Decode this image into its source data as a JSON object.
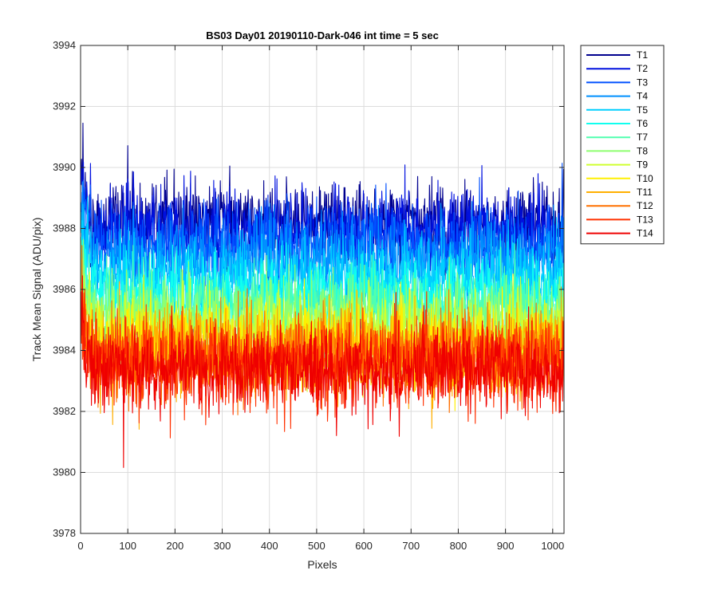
{
  "chart_data": {
    "type": "line",
    "title": "BS03 Day01 20190110-Dark-046 int time = 5 sec",
    "xlabel": "Pixels",
    "ylabel": "Track Mean Signal (ADU/pix)",
    "xlim": [
      0,
      1024
    ],
    "ylim": [
      3978,
      3994
    ],
    "xticks": [
      0,
      100,
      200,
      300,
      400,
      500,
      600,
      700,
      800,
      900,
      1000
    ],
    "yticks": [
      3978,
      3980,
      3982,
      3984,
      3986,
      3988,
      3990,
      3992,
      3994
    ],
    "grid": true,
    "legend_position": "outside-top-right",
    "series": [
      {
        "name": "T1",
        "color": "#00008F",
        "mean": 3988.2,
        "min": 3986.3,
        "max": 3992.2,
        "spread": 1.2
      },
      {
        "name": "T2",
        "color": "#0010DF",
        "mean": 3987.9,
        "min": 3985.9,
        "max": 3991.6,
        "spread": 1.2
      },
      {
        "name": "T3",
        "color": "#0050FF",
        "mean": 3987.5,
        "min": 3985.4,
        "max": 3991.0,
        "spread": 1.2
      },
      {
        "name": "T4",
        "color": "#0090FF",
        "mean": 3987.0,
        "min": 3984.9,
        "max": 3990.4,
        "spread": 1.2
      },
      {
        "name": "T5",
        "color": "#00CFFF",
        "mean": 3986.4,
        "min": 3984.3,
        "max": 3989.8,
        "spread": 1.2
      },
      {
        "name": "T6",
        "color": "#10FFEF",
        "mean": 3985.8,
        "min": 3983.5,
        "max": 3989.2,
        "spread": 1.2
      },
      {
        "name": "T7",
        "color": "#50FFAF",
        "mean": 3985.3,
        "min": 3981.0,
        "max": 3988.8,
        "spread": 1.25
      },
      {
        "name": "T8",
        "color": "#8FFF70",
        "mean": 3985.0,
        "min": 3982.5,
        "max": 3988.5,
        "spread": 1.25
      },
      {
        "name": "T9",
        "color": "#CFFF30",
        "mean": 3984.6,
        "min": 3981.0,
        "max": 3988.2,
        "spread": 1.25
      },
      {
        "name": "T10",
        "color": "#FFEF00",
        "mean": 3984.2,
        "min": 3980.7,
        "max": 3988.0,
        "spread": 1.3
      },
      {
        "name": "T11",
        "color": "#FFAF00",
        "mean": 3984.0,
        "min": 3980.6,
        "max": 3987.8,
        "spread": 1.3
      },
      {
        "name": "T12",
        "color": "#FF7000",
        "mean": 3983.8,
        "min": 3980.5,
        "max": 3987.6,
        "spread": 1.3
      },
      {
        "name": "T13",
        "color": "#FF3000",
        "mean": 3983.6,
        "min": 3980.4,
        "max": 3987.4,
        "spread": 1.3
      },
      {
        "name": "T14",
        "color": "#EF0000",
        "mean": 3983.4,
        "min": 3979.0,
        "max": 3987.2,
        "spread": 1.3
      }
    ]
  }
}
